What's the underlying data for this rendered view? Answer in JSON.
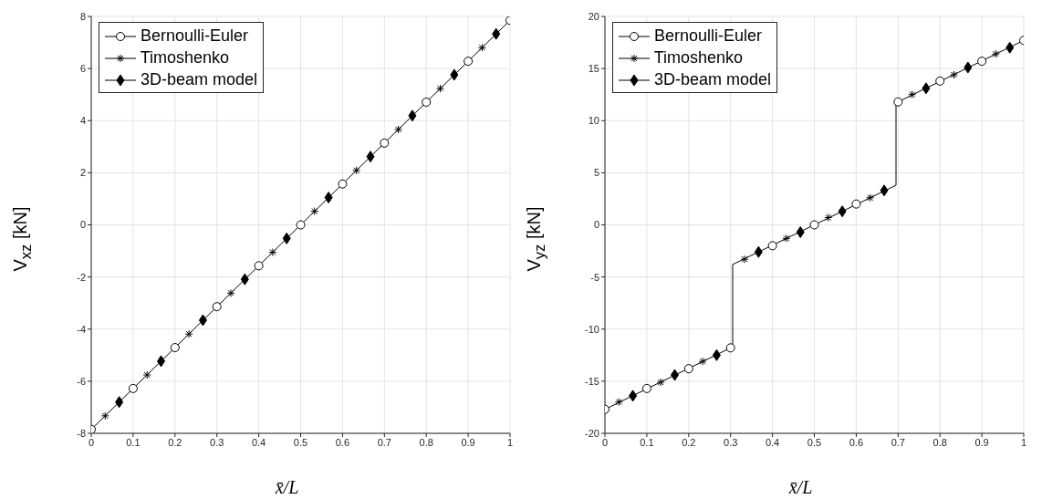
{
  "chart_data": [
    {
      "type": "line",
      "xlabel": "x̄/L",
      "ylabel": "V$_{xz}$ [kN]",
      "xlim": [
        0,
        1
      ],
      "xticks": [
        0,
        0.1,
        0.2,
        0.3,
        0.4,
        0.5,
        0.6,
        0.7,
        0.8,
        0.9,
        1
      ],
      "ylim": [
        -8,
        8
      ],
      "yticks": [
        -8,
        -6,
        -4,
        -2,
        0,
        2,
        4,
        6,
        8
      ],
      "grid": true,
      "legend": "top left",
      "line_style": "solid",
      "series": [
        {
          "color": "#000000",
          "marker": "none",
          "x": [
            0,
            1
          ],
          "values": [
            -7.85,
            7.85
          ]
        },
        {
          "type": "scatter",
          "name": "Bernoulli-Euler",
          "color": "#000000",
          "marker": "circle",
          "x": [
            0,
            0.1,
            0.2,
            0.3,
            0.4,
            0.5,
            0.6,
            0.7,
            0.8,
            0.9,
            1
          ],
          "values": [
            -7.85,
            -6.28,
            -4.71,
            -3.14,
            -1.57,
            0,
            1.57,
            3.14,
            4.71,
            6.28,
            7.85
          ]
        },
        {
          "type": "scatter",
          "name": "Timoshenko",
          "color": "#000000",
          "marker": "cross",
          "x": [
            0.0333,
            0.1333,
            0.2333,
            0.3333,
            0.4333,
            0.5333,
            0.6333,
            0.7333,
            0.8333,
            0.9333
          ],
          "values": [
            -7.33,
            -5.76,
            -4.19,
            -2.62,
            -1.05,
            0.52,
            2.09,
            3.66,
            5.23,
            6.8
          ]
        },
        {
          "type": "scatter",
          "name": "3D-beam model",
          "color": "#000000",
          "marker": "diamond",
          "x": [
            0.0667,
            0.1667,
            0.2667,
            0.3667,
            0.4667,
            0.5667,
            0.6667,
            0.7667,
            0.8667,
            0.9667
          ],
          "values": [
            -6.8,
            -5.23,
            -3.66,
            -2.09,
            -0.52,
            1.05,
            2.62,
            4.19,
            5.76,
            7.33
          ]
        }
      ]
    },
    {
      "type": "line",
      "xlabel": "x̄/L",
      "ylabel": "V$_{yz}$ [kN]",
      "xlim": [
        0,
        1
      ],
      "xticks": [
        0,
        0.1,
        0.2,
        0.3,
        0.4,
        0.5,
        0.6,
        0.7,
        0.8,
        0.9,
        1
      ],
      "ylim": [
        -20,
        20
      ],
      "yticks": [
        -20,
        -15,
        -10,
        -5,
        0,
        5,
        10,
        15,
        20
      ],
      "grid": true,
      "legend": "top left",
      "line_style": "solid",
      "series": [
        {
          "color": "#000000",
          "marker": "none",
          "x": [
            0,
            0.305,
            0.305,
            0.695,
            0.695,
            1
          ],
          "values": [
            -17.7,
            -11.7,
            -3.8,
            3.8,
            11.7,
            17.7
          ]
        },
        {
          "type": "scatter",
          "name": "Bernoulli-Euler",
          "color": "#000000",
          "marker": "circle",
          "x": [
            0,
            0.1,
            0.2,
            0.3,
            0.4,
            0.5,
            0.6,
            0.7,
            0.8,
            0.9,
            1
          ],
          "values": [
            -17.7,
            -15.7,
            -13.8,
            -11.8,
            -2,
            0,
            2,
            11.8,
            13.8,
            15.7,
            17.7
          ]
        },
        {
          "type": "scatter",
          "name": "Timoshenko",
          "color": "#000000",
          "marker": "cross",
          "x": [
            0.0333,
            0.1333,
            0.2333,
            0.3333,
            0.4333,
            0.5333,
            0.6333,
            0.7333,
            0.8333,
            0.9333
          ],
          "values": [
            -17,
            -15.1,
            -13.1,
            -3.3,
            -1.3,
            0.7,
            2.6,
            12.5,
            14.4,
            16.4
          ]
        },
        {
          "type": "scatter",
          "name": "3D-beam model",
          "color": "#000000",
          "marker": "diamond",
          "x": [
            0.0667,
            0.1667,
            0.2667,
            0.3667,
            0.4667,
            0.5667,
            0.6667,
            0.7667,
            0.8667,
            0.9667
          ],
          "values": [
            -16.4,
            -14.4,
            -12.5,
            -2.6,
            -0.7,
            1.3,
            3.3,
            13.1,
            15.1,
            17
          ]
        }
      ]
    }
  ]
}
